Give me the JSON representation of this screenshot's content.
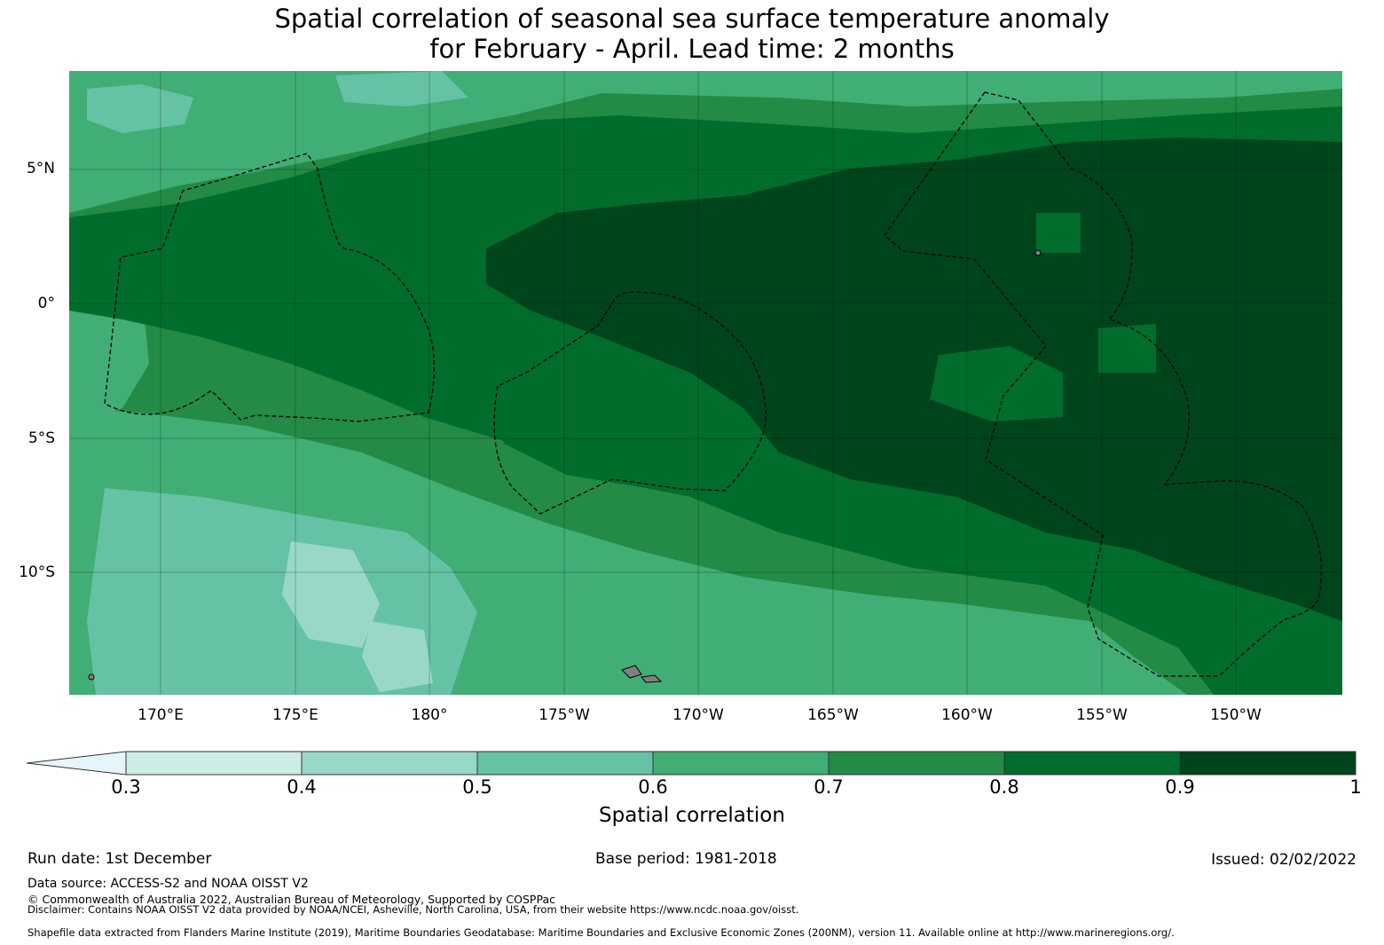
{
  "title": {
    "line1": "Spatial correlation of seasonal sea surface temperature anomaly",
    "line2": "for February - April. Lead time: 2 months"
  },
  "map": {
    "lat_labels": [
      "5°N",
      "0°",
      "5°S",
      "10°S"
    ],
    "lon_labels": [
      "170°E",
      "175°E",
      "180°",
      "175°W",
      "170°W",
      "165°W",
      "160°W",
      "155°W",
      "150°W"
    ],
    "zone_colors": {
      "corr_0_5_0_6": "#66c2a4",
      "corr_0_6_0_7": "#41ae76",
      "corr_0_7_0_8": "#238b45",
      "corr_0_8_0_9": "#006d2c",
      "corr_0_9_1": "#00441b"
    },
    "eez_outline_color": "#000000",
    "land_color": "#808080"
  },
  "colorbar": {
    "label": "Spatial correlation",
    "ticks": [
      "0.3",
      "0.4",
      "0.5",
      "0.6",
      "0.7",
      "0.8",
      "0.9",
      "1"
    ],
    "under_color": "#e5f5f9",
    "colors": [
      "#ccece6",
      "#99d8c9",
      "#66c2a4",
      "#41ae76",
      "#238b45",
      "#006d2c",
      "#00441b"
    ]
  },
  "footer": {
    "run_date": "Run date: 1st December",
    "base_period": "Base period: 1981-2018",
    "issued": "Issued: 02/02/2022",
    "data_source": "Data source: ACCESS-S2 and NOAA OISST V2",
    "copyright": "© Commonwealth of Australia 2022, Australian Bureau of Meteorology, Supported by COSPPac",
    "disclaimer": "Disclaimer: Contains NOAA OISST V2 data provided by NOAA/NCEI, Asheville, North Carolina, USA, from their website https://www.ncdc.noaa.gov/oisst.",
    "shapefile": "Shapefile data extracted from Flanders Marine Institute (2019), Maritime Boundaries Geodatabase: Maritime Boundaries and Exclusive Economic Zones (200NM), version 11. Available online at http://www.marineregions.org/."
  }
}
